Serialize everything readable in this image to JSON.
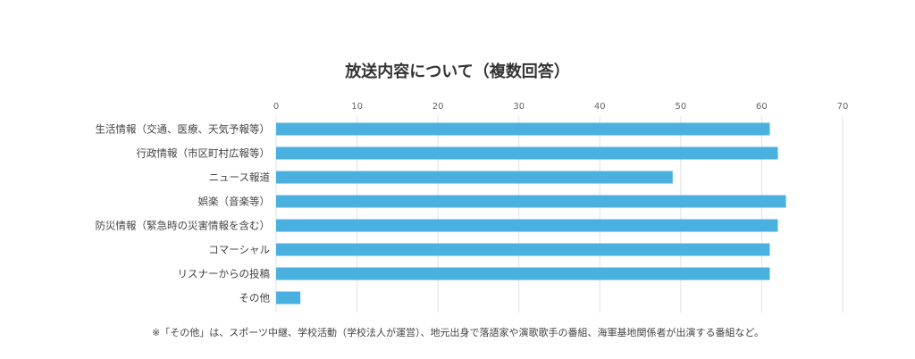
{
  "chart_data": {
    "type": "bar",
    "orientation": "horizontal",
    "title": "放送内容について（複数回答）",
    "categories": [
      "生活情報（交通、医療、天気予報等）",
      "行政情報（市区町村広報等）",
      "ニュース報道",
      "娯楽（音楽等）",
      "防災情報（緊急時の災害情報を含む）",
      "コマーシャル",
      "リスナーからの投稿",
      "その他"
    ],
    "values": [
      61,
      62,
      49,
      63,
      62,
      61,
      61,
      3
    ],
    "xlim": [
      0,
      70
    ],
    "xticks": [
      0,
      10,
      20,
      30,
      40,
      50,
      60,
      70
    ],
    "xlabel": "",
    "ylabel": "",
    "grid": true,
    "bar_color": "#4ab0e0",
    "note": "※「その他」は、スポーツ中継、学校活動（学校法人が運営）、地元出身で落語家や演歌歌手の番組、海軍基地関係者が出演する番組など。"
  }
}
